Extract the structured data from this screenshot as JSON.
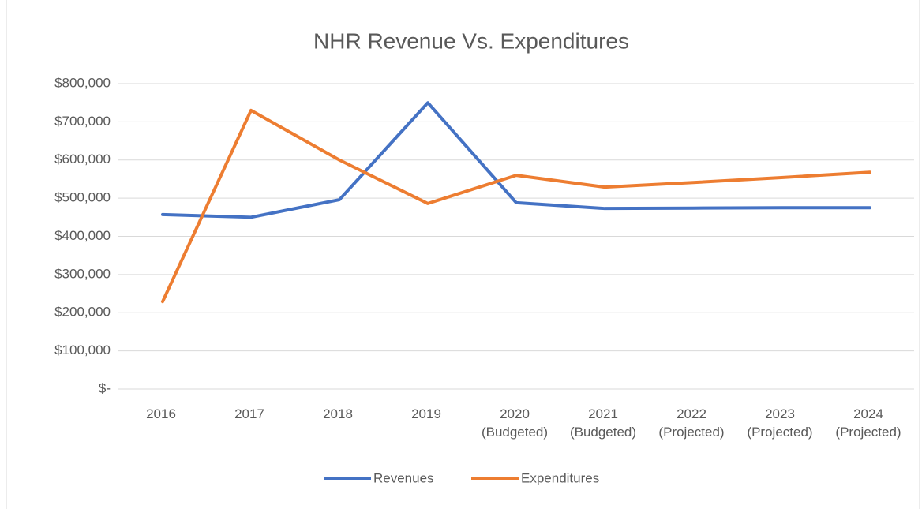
{
  "chart_data": {
    "type": "line",
    "title": "NHR Revenue Vs. Expenditures",
    "categories": [
      "2016",
      "2017",
      "2018",
      "2019",
      "2020 (Budgeted)",
      "2021 (Budgeted)",
      "2022 (Projected)",
      "2023 (Projected)",
      "2024 (Projected)"
    ],
    "series": [
      {
        "name": "Revenues",
        "color": "#4472c4",
        "values": [
          457000,
          450000,
          496000,
          750000,
          488000,
          473000,
          474000,
          475000,
          475000
        ]
      },
      {
        "name": "Expenditures",
        "color": "#ed7d31",
        "values": [
          229000,
          730000,
          600000,
          486000,
          560000,
          529000,
          541000,
          554000,
          568000
        ]
      }
    ],
    "ylim": [
      0,
      800000
    ],
    "yticks": [
      {
        "value": 0,
        "label": "$-"
      },
      {
        "value": 100000,
        "label": "$100,000"
      },
      {
        "value": 200000,
        "label": "$200,000"
      },
      {
        "value": 300000,
        "label": "$300,000"
      },
      {
        "value": 400000,
        "label": "$400,000"
      },
      {
        "value": 500000,
        "label": "$500,000"
      },
      {
        "value": 600000,
        "label": "$600,000"
      },
      {
        "value": 700000,
        "label": "$700,000"
      },
      {
        "value": 800000,
        "label": "$800,000"
      }
    ],
    "grid": true,
    "legend": "bottom"
  }
}
